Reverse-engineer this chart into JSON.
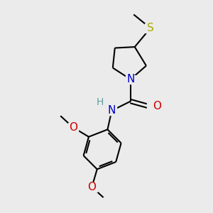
{
  "background_color": "#ebebeb",
  "atom_colors": {
    "N": "#0000cc",
    "O": "#cc0000",
    "S": "#aaaa00",
    "H": "#5f9ea0",
    "C": "#000000"
  },
  "bond_color": "#000000",
  "bond_width": 1.5,
  "figsize": [
    3.0,
    3.0
  ],
  "dpi": 100,
  "xlim": [
    0,
    10
  ],
  "ylim": [
    0,
    10
  ]
}
